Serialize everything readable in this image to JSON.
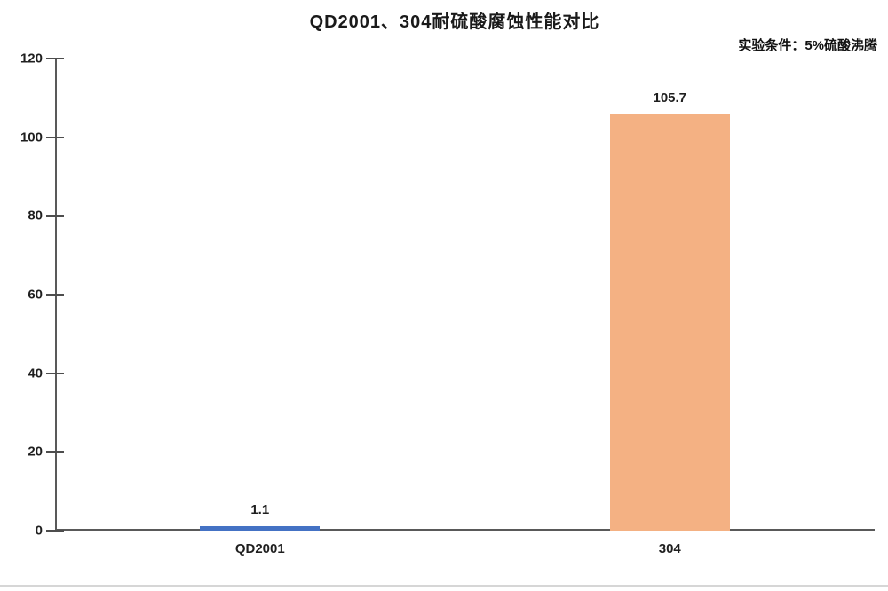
{
  "page": {
    "background": "#ffffff",
    "bottom_divider_color": "#d6d6d6"
  },
  "chart_data": {
    "type": "bar",
    "title": "QD2001、304耐硫酸腐蚀性能对比",
    "annotation": "实验条件：5%硫酸沸腾",
    "categories": [
      "QD2001",
      "304"
    ],
    "values": [
      1.1,
      105.7
    ],
    "value_labels": [
      "1.1",
      "105.7"
    ],
    "bar_colors": [
      "#4472C4",
      "#F4B183"
    ],
    "xlabel": "",
    "ylabel": "",
    "ylim": [
      0,
      120
    ],
    "yticks": [
      0,
      20,
      40,
      60,
      80,
      100,
      120
    ],
    "grid": false,
    "legend": "none",
    "axis_color": "#595959",
    "text_color": "#1f1f1f"
  }
}
